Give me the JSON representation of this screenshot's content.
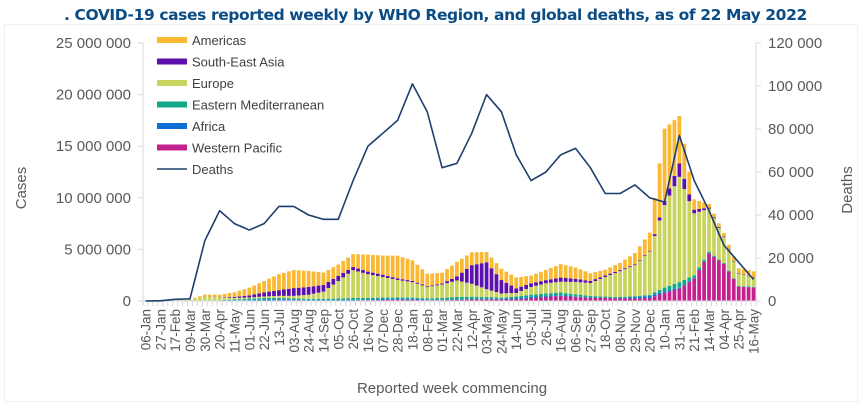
{
  "chart_data": {
    "type": "bar",
    "subtype": "stacked-bar-with-line",
    "title": ". COVID-19 cases reported weekly by WHO Region, and global deaths, as of 22 May 2022",
    "xlabel": "Reported week commencing",
    "ylabel": "Cases",
    "y2label": "Deaths",
    "ylim": [
      0,
      25000000
    ],
    "y2lim": [
      0,
      120000
    ],
    "yticks": [
      "25 000 000",
      "20 000 000",
      "15 000 000",
      "10 000 000",
      "5 000 000",
      "0"
    ],
    "yticks_values": [
      25000000,
      20000000,
      15000000,
      10000000,
      5000000,
      0
    ],
    "y2ticks": [
      "120 000",
      "100 000",
      "80 000",
      "60 000",
      "40 000",
      "20 000",
      "0"
    ],
    "y2ticks_values": [
      120000,
      100000,
      80000,
      60000,
      40000,
      20000,
      0
    ],
    "grid": false,
    "legend_position": "top-left",
    "x_tick_labels": [
      "06-Jan",
      "27-Jan",
      "17-Feb",
      "09-Mar",
      "30-Mar",
      "20-Apr",
      "11-May",
      "01-Jun",
      "22-Jun",
      "13-Jul",
      "03-Aug",
      "24-Aug",
      "14-Sep",
      "05-Oct",
      "26-Oct",
      "16-Nov",
      "07-Dec",
      "28-Dec",
      "18-Jan",
      "08-Feb",
      "01-Mar",
      "22-Mar",
      "12-Apr",
      "03-May",
      "24-May",
      "14-Jun",
      "05-Jul",
      "26-Jul",
      "16-Aug",
      "06-Sep",
      "27-Sep",
      "18-Oct",
      "08-Nov",
      "29-Nov",
      "20-Dec",
      "10-Jan",
      "31-Jan",
      "21-Feb",
      "14-Mar",
      "04-Apr",
      "25-Apr",
      "16-May"
    ],
    "x_tick_every_weeks": 3,
    "n_weeks": 124,
    "stack_order_bottom_to_top": [
      "Western Pacific",
      "Africa",
      "Eastern Mediterranean",
      "Europe",
      "South-East Asia",
      "Americas"
    ],
    "series": [
      {
        "name": "Americas",
        "color": "#f9b934",
        "type": "bar",
        "values_millions_by_3week_anchor": [
          0,
          0,
          0,
          0.02,
          0.2,
          0.2,
          0.45,
          0.75,
          1.1,
          1.55,
          1.75,
          1.55,
          1.2,
          1.1,
          1.25,
          1.65,
          1.85,
          2.2,
          2.0,
          1.2,
          1.05,
          1.4,
          1.25,
          1.0,
          1.1,
          1.05,
          0.75,
          1.0,
          1.3,
          1.1,
          0.75,
          0.55,
          0.7,
          1.1,
          1.75,
          7.0,
          4.6,
          1.0,
          0.35,
          0.35,
          0.45,
          0.55
        ]
      },
      {
        "name": "South-East Asia",
        "color": "#5b0fad",
        "type": "bar",
        "values_millions_by_3week_anchor": [
          0,
          0,
          0,
          0,
          0.01,
          0.03,
          0.1,
          0.2,
          0.4,
          0.55,
          0.75,
          0.75,
          0.65,
          0.5,
          0.3,
          0.25,
          0.22,
          0.15,
          0.12,
          0.08,
          0.09,
          0.4,
          1.8,
          2.6,
          1.3,
          0.45,
          0.35,
          0.3,
          0.4,
          0.3,
          0.2,
          0.15,
          0.1,
          0.08,
          0.07,
          0.4,
          1.3,
          0.35,
          0.1,
          0.06,
          0.05,
          0.05
        ]
      },
      {
        "name": "Europe",
        "color": "#c8d45e",
        "type": "bar",
        "values_millions_by_3week_anchor": [
          0,
          0,
          0.01,
          0.1,
          0.35,
          0.3,
          0.15,
          0.1,
          0.15,
          0.2,
          0.25,
          0.4,
          0.7,
          1.7,
          2.7,
          2.3,
          2.0,
          1.7,
          1.5,
          1.1,
          1.3,
          1.6,
          1.25,
          0.75,
          0.4,
          0.35,
          0.75,
          1.0,
          1.05,
          1.2,
          1.25,
          1.9,
          2.5,
          3.0,
          4.2,
          8.0,
          10.2,
          6.0,
          4.2,
          2.5,
          1.2,
          0.9
        ]
      },
      {
        "name": "Eastern Mediterranean",
        "color": "#13a88a",
        "type": "bar",
        "values_millions_by_3week_anchor": [
          0,
          0,
          0,
          0.01,
          0.03,
          0.05,
          0.1,
          0.15,
          0.15,
          0.12,
          0.1,
          0.1,
          0.12,
          0.15,
          0.18,
          0.16,
          0.14,
          0.1,
          0.12,
          0.12,
          0.18,
          0.25,
          0.23,
          0.18,
          0.12,
          0.15,
          0.2,
          0.22,
          0.25,
          0.2,
          0.15,
          0.1,
          0.1,
          0.1,
          0.1,
          0.35,
          0.55,
          0.25,
          0.12,
          0.06,
          0.05,
          0.05
        ]
      },
      {
        "name": "Africa",
        "color": "#0b6fd3",
        "type": "bar",
        "values_millions_by_3week_anchor": [
          0,
          0,
          0,
          0,
          0.005,
          0.01,
          0.03,
          0.06,
          0.1,
          0.12,
          0.08,
          0.05,
          0.04,
          0.04,
          0.05,
          0.06,
          0.09,
          0.12,
          0.1,
          0.06,
          0.04,
          0.04,
          0.04,
          0.05,
          0.07,
          0.13,
          0.16,
          0.1,
          0.07,
          0.05,
          0.04,
          0.03,
          0.04,
          0.12,
          0.2,
          0.15,
          0.08,
          0.05,
          0.03,
          0.02,
          0.02,
          0.02
        ]
      },
      {
        "name": "Western Pacific",
        "color": "#c4218e",
        "type": "bar",
        "values_millions_by_3week_anchor": [
          0.005,
          0.02,
          0.04,
          0.02,
          0.02,
          0.02,
          0.02,
          0.03,
          0.04,
          0.06,
          0.07,
          0.06,
          0.05,
          0.05,
          0.06,
          0.08,
          0.1,
          0.12,
          0.11,
          0.07,
          0.08,
          0.1,
          0.15,
          0.17,
          0.14,
          0.15,
          0.25,
          0.4,
          0.5,
          0.4,
          0.3,
          0.3,
          0.25,
          0.25,
          0.3,
          0.8,
          1.2,
          2.2,
          4.6,
          3.6,
          1.4,
          1.3
        ]
      },
      {
        "name": "Deaths",
        "color": "#1f3e6e",
        "type": "line",
        "axis": "right",
        "values_by_3week_anchor": [
          0,
          100,
          800,
          1000,
          28000,
          42000,
          36000,
          33000,
          36000,
          44000,
          44000,
          40000,
          38000,
          38000,
          56000,
          72000,
          78000,
          84000,
          101000,
          88000,
          62000,
          64000,
          78000,
          96000,
          88000,
          68000,
          56000,
          60000,
          68000,
          71000,
          62000,
          50000,
          50000,
          54000,
          48000,
          46000,
          77000,
          56000,
          42000,
          26000,
          18000,
          10000
        ]
      }
    ],
    "legend": [
      "Americas",
      "South-East Asia",
      "Europe",
      "Eastern Mediterranean",
      "Africa",
      "Western Pacific",
      "Deaths"
    ]
  }
}
